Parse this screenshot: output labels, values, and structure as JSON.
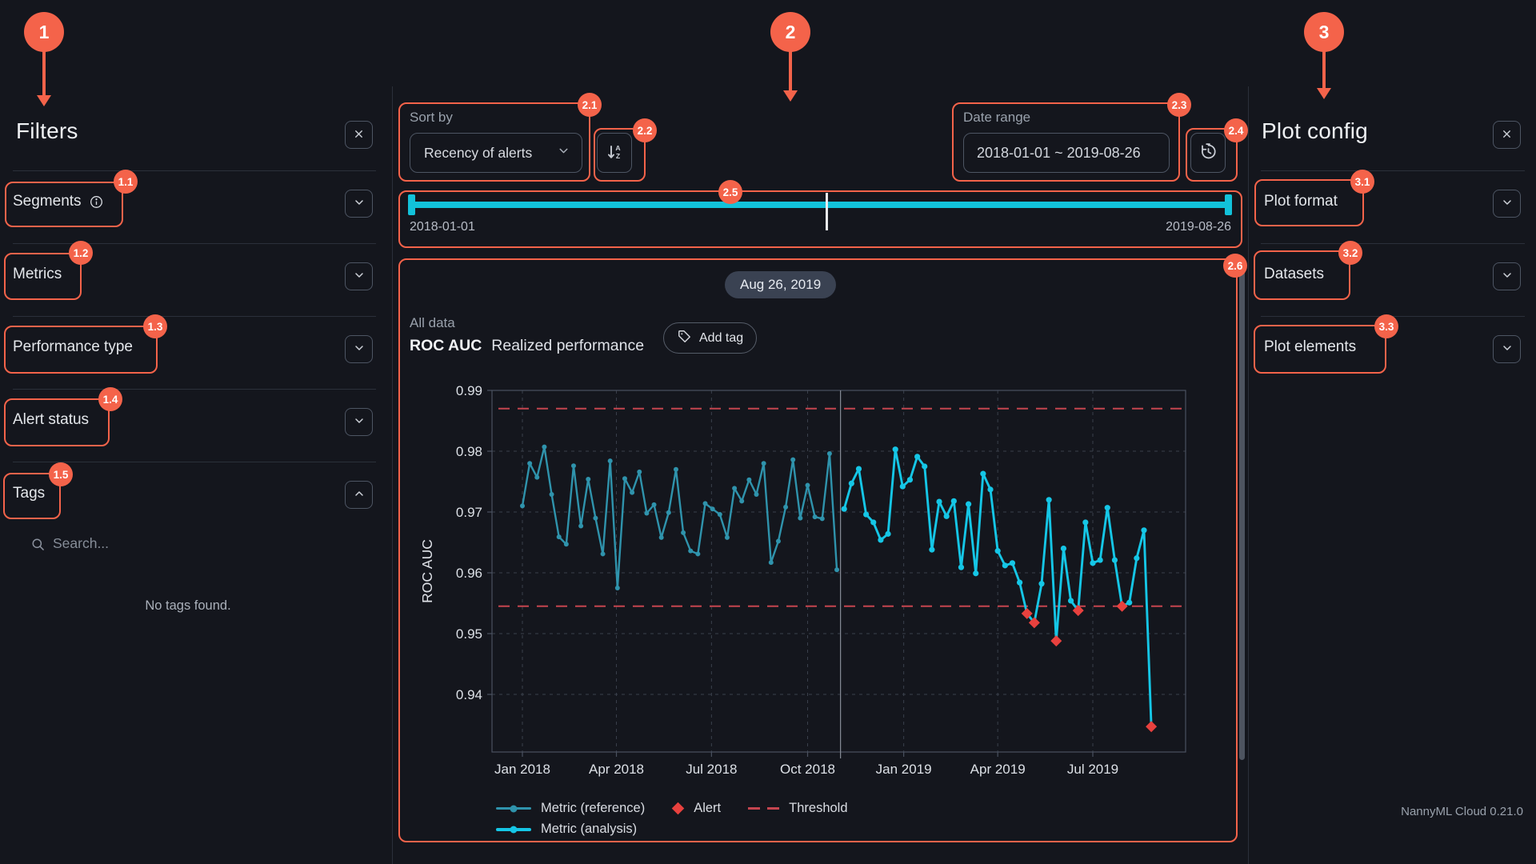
{
  "app": {
    "version_label": "NannyML Cloud 0.21.0"
  },
  "filters_panel": {
    "title": "Filters",
    "sections": [
      {
        "label": "Segments",
        "info_icon": "info-icon",
        "state": "collapsed"
      },
      {
        "label": "Metrics",
        "state": "collapsed"
      },
      {
        "label": "Performance type",
        "state": "collapsed"
      },
      {
        "label": "Alert status",
        "state": "collapsed"
      },
      {
        "label": "Tags",
        "state": "expanded"
      }
    ],
    "tags": {
      "search_placeholder": "Search...",
      "empty_text": "No tags found."
    }
  },
  "toolbar": {
    "sort": {
      "label": "Sort by",
      "value": "Recency of alerts",
      "order_icon": "sort-descending-az-icon"
    },
    "date_range": {
      "label": "Date range",
      "value": "2018-01-01 ~ 2019-08-26",
      "reset_icon": "history-icon"
    }
  },
  "timeline": {
    "start_label": "2018-01-01",
    "end_label": "2019-08-26"
  },
  "chart_panel": {
    "date_badge": "Aug 26, 2019",
    "scope_label": "All data",
    "metric_name": "ROC AUC",
    "subtitle": "Realized performance",
    "add_tag_label": "Add tag",
    "legend": {
      "reference": "Metric (reference)",
      "analysis": "Metric (analysis)",
      "alert": "Alert",
      "threshold": "Threshold"
    }
  },
  "plot_config_panel": {
    "title": "Plot config",
    "sections": [
      {
        "label": "Plot format"
      },
      {
        "label": "Datasets"
      },
      {
        "label": "Plot elements"
      }
    ]
  },
  "annotations": {
    "m1": "1",
    "m2": "2",
    "m3": "3",
    "b1_1": "1.1",
    "b1_2": "1.2",
    "b1_3": "1.3",
    "b1_4": "1.4",
    "b1_5": "1.5",
    "b2_1": "2.1",
    "b2_2": "2.2",
    "b2_3": "2.3",
    "b2_4": "2.4",
    "b2_5": "2.5",
    "b2_6": "2.6",
    "b3_1": "3.1",
    "b3_2": "3.2",
    "b3_3": "3.3"
  },
  "colors": {
    "annotation": "#F4634A",
    "analysis_line": "#15C6E6",
    "reference_line": "#2F93AC",
    "alert": "#E8413E",
    "threshold": "#C4454F",
    "slider": "#12C2DA"
  },
  "chart_data": {
    "type": "line",
    "title": "ROC AUC Realized performance",
    "ylabel": "ROC AUC",
    "xlabel": "",
    "ylim": [
      0.9305,
      0.99
    ],
    "yticks": [
      0.99,
      0.98,
      0.97,
      0.96,
      0.95,
      0.94
    ],
    "xticks": [
      "Jan 2018",
      "Apr 2018",
      "Jul 2018",
      "Oct 2018",
      "Jan 2019",
      "Apr 2019",
      "Jul 2019"
    ],
    "xtick_day_offsets": [
      0,
      90,
      181,
      273,
      365,
      455,
      546
    ],
    "x_start_date": "2018-01-01",
    "interval_days": 7,
    "grid": true,
    "legend_position": "bottom",
    "thresholds": {
      "upper": 0.987,
      "lower": 0.9545
    },
    "split": {
      "label": "reference-analysis-boundary",
      "day_offset": 304.5
    },
    "series": [
      {
        "name": "Metric (reference)",
        "start_day": 0,
        "start_date": "2018-01-01",
        "values": [
          0.971,
          0.978,
          0.9757,
          0.9807,
          0.9729,
          0.9659,
          0.9647,
          0.9776,
          0.9677,
          0.9754,
          0.969,
          0.9631,
          0.9784,
          0.9575,
          0.9755,
          0.9732,
          0.9766,
          0.9698,
          0.9712,
          0.9658,
          0.9699,
          0.977,
          0.9666,
          0.9636,
          0.9631,
          0.9714,
          0.9705,
          0.9696,
          0.9658,
          0.9739,
          0.9718,
          0.9753,
          0.9729,
          0.978,
          0.9617,
          0.9652,
          0.9708,
          0.9786,
          0.969,
          0.9744,
          0.9692,
          0.9689,
          0.9796,
          0.9605
        ]
      },
      {
        "name": "Metric (analysis)",
        "start_day": 308,
        "start_date": "2018-11-05",
        "values": [
          0.9705,
          0.9747,
          0.9771,
          0.9696,
          0.9683,
          0.9654,
          0.9664,
          0.9803,
          0.9742,
          0.9753,
          0.9791,
          0.9775,
          0.9638,
          0.9717,
          0.9693,
          0.9718,
          0.9609,
          0.9713,
          0.9599,
          0.9763,
          0.9737,
          0.9636,
          0.9612,
          0.9616,
          0.9584,
          0.9533,
          0.9518,
          0.9582,
          0.972,
          0.9488,
          0.964,
          0.9554,
          0.9538,
          0.9683,
          0.9616,
          0.9621,
          0.9707,
          0.9621,
          0.9545,
          0.9551,
          0.9624,
          0.967,
          0.9347
        ]
      }
    ],
    "alert_indices": [
      25,
      26,
      29,
      32,
      38,
      42
    ],
    "alert_dates": [
      "2019-04-29",
      "2019-05-06",
      "2019-05-27",
      "2019-06-17",
      "2019-07-29",
      "2019-08-26"
    ],
    "alert_values": [
      0.9533,
      0.9518,
      0.9488,
      0.9538,
      0.9545,
      0.9347
    ]
  }
}
